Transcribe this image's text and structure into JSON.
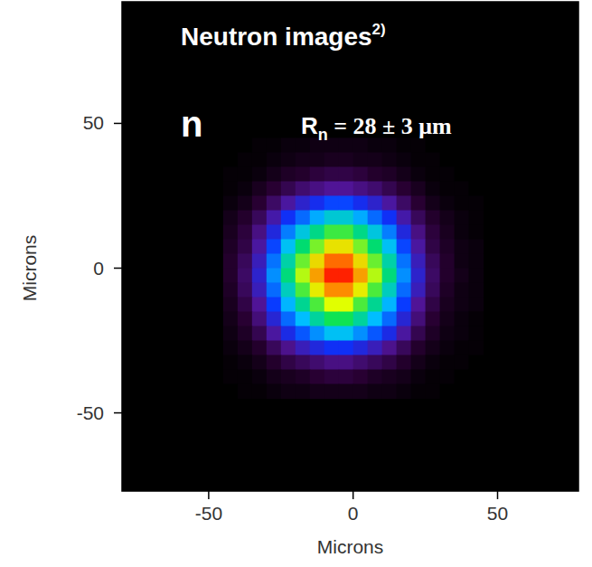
{
  "chart_data": {
    "type": "heatmap",
    "title": "Neutron images",
    "title_superscript": "2)",
    "annotations": [
      {
        "text": "n"
      },
      {
        "text": "R",
        "subscript": "n",
        "rest": " = 28 ± 3 μm"
      }
    ],
    "xlabel": "Microns",
    "ylabel": "Microns",
    "xlim": [
      -80,
      78
    ],
    "ylim": [
      -77,
      92
    ],
    "xticks": [
      -50,
      0,
      50
    ],
    "yticks": [
      -50,
      0,
      50
    ],
    "grid": false,
    "x": [
      -42.5,
      -37.5,
      -32.5,
      -27.5,
      -22.5,
      -17.5,
      -12.5,
      -7.5,
      -2.5,
      2.5,
      7.5,
      12.5,
      17.5,
      22.5,
      27.5,
      32.5,
      37.5,
      42.5
    ],
    "y": [
      42.5,
      37.5,
      32.5,
      27.5,
      22.5,
      17.5,
      12.5,
      7.5,
      2.5,
      -2.5,
      -7.5,
      -12.5,
      -17.5,
      -22.5,
      -27.5,
      -32.5,
      -37.5,
      -42.5
    ],
    "z": [
      [
        0.0,
        0.0,
        0.01,
        0.01,
        0.02,
        0.02,
        0.03,
        0.03,
        0.03,
        0.03,
        0.02,
        0.02,
        0.01,
        0.01,
        0.0,
        0.0,
        0.0,
        0.0
      ],
      [
        0.0,
        0.01,
        0.01,
        0.02,
        0.03,
        0.04,
        0.04,
        0.05,
        0.05,
        0.04,
        0.04,
        0.03,
        0.02,
        0.01,
        0.01,
        0.0,
        0.0,
        0.0
      ],
      [
        0.01,
        0.01,
        0.02,
        0.04,
        0.06,
        0.07,
        0.09,
        0.1,
        0.1,
        0.09,
        0.07,
        0.06,
        0.04,
        0.02,
        0.01,
        0.01,
        0.0,
        0.0
      ],
      [
        0.01,
        0.02,
        0.05,
        0.08,
        0.11,
        0.14,
        0.16,
        0.18,
        0.18,
        0.16,
        0.14,
        0.11,
        0.08,
        0.05,
        0.02,
        0.01,
        0.01,
        0.0
      ],
      [
        0.02,
        0.04,
        0.08,
        0.13,
        0.19,
        0.24,
        0.28,
        0.32,
        0.32,
        0.28,
        0.24,
        0.19,
        0.13,
        0.08,
        0.04,
        0.02,
        0.01,
        0.01
      ],
      [
        0.04,
        0.07,
        0.12,
        0.2,
        0.29,
        0.36,
        0.43,
        0.49,
        0.49,
        0.43,
        0.36,
        0.29,
        0.2,
        0.12,
        0.07,
        0.04,
        0.02,
        0.01
      ],
      [
        0.05,
        0.09,
        0.16,
        0.26,
        0.38,
        0.48,
        0.56,
        0.64,
        0.64,
        0.56,
        0.48,
        0.38,
        0.26,
        0.16,
        0.09,
        0.05,
        0.02,
        0.01
      ],
      [
        0.06,
        0.1,
        0.19,
        0.32,
        0.46,
        0.58,
        0.68,
        0.78,
        0.78,
        0.68,
        0.58,
        0.46,
        0.32,
        0.19,
        0.1,
        0.06,
        0.03,
        0.02
      ],
      [
        0.07,
        0.12,
        0.22,
        0.37,
        0.53,
        0.67,
        0.79,
        0.9,
        0.9,
        0.79,
        0.67,
        0.53,
        0.37,
        0.22,
        0.12,
        0.07,
        0.03,
        0.02
      ],
      [
        0.07,
        0.13,
        0.24,
        0.4,
        0.57,
        0.72,
        0.85,
        0.97,
        0.97,
        0.85,
        0.72,
        0.57,
        0.4,
        0.24,
        0.13,
        0.07,
        0.04,
        0.02
      ],
      [
        0.06,
        0.12,
        0.22,
        0.36,
        0.51,
        0.65,
        0.77,
        0.87,
        0.87,
        0.77,
        0.65,
        0.51,
        0.36,
        0.22,
        0.12,
        0.06,
        0.03,
        0.02
      ],
      [
        0.05,
        0.1,
        0.18,
        0.31,
        0.44,
        0.55,
        0.65,
        0.75,
        0.75,
        0.65,
        0.55,
        0.44,
        0.31,
        0.18,
        0.1,
        0.05,
        0.03,
        0.02
      ],
      [
        0.04,
        0.08,
        0.15,
        0.25,
        0.36,
        0.45,
        0.54,
        0.61,
        0.61,
        0.54,
        0.45,
        0.36,
        0.25,
        0.15,
        0.08,
        0.04,
        0.02,
        0.01
      ],
      [
        0.03,
        0.06,
        0.11,
        0.19,
        0.27,
        0.34,
        0.4,
        0.46,
        0.46,
        0.4,
        0.34,
        0.27,
        0.19,
        0.11,
        0.06,
        0.03,
        0.02,
        0.01
      ],
      [
        0.02,
        0.04,
        0.07,
        0.12,
        0.17,
        0.22,
        0.26,
        0.29,
        0.29,
        0.26,
        0.22,
        0.17,
        0.12,
        0.07,
        0.04,
        0.02,
        0.01,
        0.01
      ],
      [
        0.01,
        0.02,
        0.04,
        0.07,
        0.1,
        0.12,
        0.14,
        0.16,
        0.16,
        0.14,
        0.12,
        0.1,
        0.07,
        0.04,
        0.02,
        0.01,
        0.01,
        0.0
      ],
      [
        0.01,
        0.01,
        0.02,
        0.04,
        0.05,
        0.06,
        0.08,
        0.09,
        0.09,
        0.08,
        0.06,
        0.05,
        0.04,
        0.02,
        0.01,
        0.01,
        0.0,
        0.0
      ],
      [
        0.0,
        0.01,
        0.01,
        0.02,
        0.03,
        0.03,
        0.04,
        0.04,
        0.04,
        0.04,
        0.03,
        0.03,
        0.02,
        0.01,
        0.01,
        0.0,
        0.0,
        0.0
      ]
    ]
  }
}
